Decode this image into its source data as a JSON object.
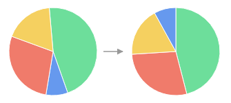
{
  "chart_data": [
    {
      "type": "pie",
      "values": [
        46,
        8,
        28,
        18
      ],
      "colors": [
        "#6dde9b",
        "#6699ee",
        "#f07b6b",
        "#f5d060"
      ]
    },
    {
      "type": "pie",
      "values": [
        46,
        28,
        18,
        8
      ],
      "colors": [
        "#6dde9b",
        "#f07b6b",
        "#f5d060",
        "#6699ee"
      ]
    }
  ]
}
